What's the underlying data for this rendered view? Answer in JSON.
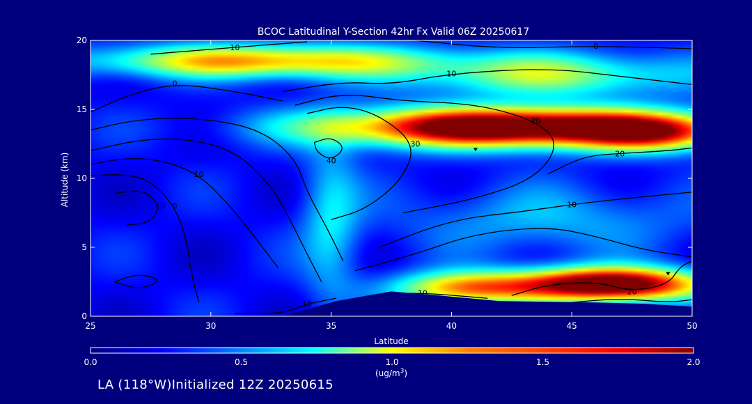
{
  "footer": {
    "text": "LA (118°W)Initialized 12Z 20250615"
  },
  "colors": {
    "background": "#00007f",
    "field_low": "#0033dd",
    "field_mid": "#22ccff",
    "field_high": "#8b0000",
    "terrain": "#00007f",
    "contour": "#000000"
  },
  "chart_data": {
    "type": "heatmap",
    "title": "BCOC Latitudinal Y-Section 42hr  Fx Valid 06Z 20250617",
    "xlabel": "Latitude",
    "ylabel": "Altitude (km)",
    "xlim": [
      25,
      50
    ],
    "ylim": [
      0,
      20
    ],
    "xticks": [
      25,
      30,
      35,
      40,
      45,
      50
    ],
    "yticks": [
      0,
      5,
      10,
      15,
      20
    ],
    "colorbar": {
      "label": "(ug/m",
      "label_sup": "3",
      "label_end": ")",
      "range": [
        0.0,
        2.0
      ],
      "ticks": [
        "0.0",
        "0.5",
        "1.0",
        "1.5",
        "2.0"
      ],
      "colormap": "jet"
    },
    "features": [
      {
        "name": "upper high band",
        "lat": 42.5,
        "alt": 13.7,
        "lat_halfwidth": 7.5,
        "alt_halfwidth": 1.4,
        "value": 2.2
      },
      {
        "name": "upper band east tail",
        "lat": 48.5,
        "alt": 13.2,
        "lat_halfwidth": 3.0,
        "alt_halfwidth": 1.3,
        "value": 0.9
      },
      {
        "name": "lower high band",
        "lat": 46.5,
        "alt": 2.3,
        "lat_halfwidth": 4.0,
        "alt_halfwidth": 1.2,
        "value": 2.1
      },
      {
        "name": "lower band west tail",
        "lat": 40.5,
        "alt": 2.0,
        "lat_halfwidth": 3.0,
        "alt_halfwidth": 1.2,
        "value": 1.1
      },
      {
        "name": "stratospheric layer",
        "lat": 32.0,
        "alt": 18.5,
        "lat_halfwidth": 7.0,
        "alt_halfwidth": 1.2,
        "value": 1.2
      },
      {
        "name": "stratospheric east",
        "lat": 44.0,
        "alt": 17.5,
        "lat_halfwidth": 6.0,
        "alt_halfwidth": 1.6,
        "value": 0.8
      },
      {
        "name": "mid-level east",
        "lat": 44.0,
        "alt": 7.0,
        "lat_halfwidth": 6.0,
        "alt_halfwidth": 2.5,
        "value": 0.35
      },
      {
        "name": "plume column",
        "lat": 35.0,
        "alt": 7.0,
        "lat_halfwidth": 1.2,
        "alt_halfwidth": 6.0,
        "value": 0.45
      }
    ],
    "terrain": [
      [
        25,
        0
      ],
      [
        33.0,
        0
      ],
      [
        35.2,
        1.1
      ],
      [
        37.5,
        1.8
      ],
      [
        39.5,
        1.5
      ],
      [
        42.0,
        1.1
      ],
      [
        46.0,
        1.0
      ],
      [
        48.0,
        0.9
      ],
      [
        50,
        0.7
      ]
    ],
    "contours": [
      {
        "label": "10",
        "points": [
          [
            27.5,
            19.0
          ],
          [
            31,
            19.5
          ],
          [
            34,
            19.9
          ]
        ]
      },
      {
        "label": "0",
        "points": [
          [
            38.5,
            20
          ],
          [
            42,
            19.4
          ],
          [
            46,
            19.6
          ],
          [
            50,
            19.4
          ]
        ]
      },
      {
        "label": "10",
        "points": [
          [
            33,
            16.3
          ],
          [
            35.5,
            17.0
          ],
          [
            37.5,
            16.8
          ],
          [
            40,
            17.6
          ],
          [
            44,
            18.0
          ],
          [
            47,
            17.4
          ],
          [
            50,
            16.8
          ]
        ]
      },
      {
        "label": "20",
        "points": [
          [
            33.5,
            15.3
          ],
          [
            35.5,
            16.2
          ],
          [
            38,
            15.6
          ],
          [
            41,
            15.4
          ],
          [
            43.5,
            14.2
          ],
          [
            44.5,
            12.5
          ],
          [
            43.5,
            10.0
          ],
          [
            41,
            8.5
          ],
          [
            38,
            7.5
          ]
        ]
      },
      {
        "label": "30",
        "points": [
          [
            34,
            14.7
          ],
          [
            35.5,
            15.3
          ],
          [
            37,
            14.6
          ],
          [
            38.5,
            12.5
          ],
          [
            38.0,
            10.0
          ],
          [
            36.5,
            7.8
          ],
          [
            35,
            7.0
          ]
        ]
      },
      {
        "label": "40",
        "points": [
          [
            34.3,
            12.6
          ],
          [
            35.0,
            13.0
          ],
          [
            35.6,
            12.2
          ],
          [
            35.0,
            11.3
          ],
          [
            34.4,
            11.9
          ],
          [
            34.3,
            12.6
          ]
        ]
      },
      {
        "label": "0",
        "points": [
          [
            25,
            14.8
          ],
          [
            26.5,
            16.0
          ],
          [
            28.5,
            16.9
          ],
          [
            31,
            16.3
          ],
          [
            33,
            15.6
          ]
        ]
      },
      {
        "label": "",
        "points": [
          [
            25,
            13.5
          ],
          [
            27,
            14.3
          ],
          [
            29.5,
            14.4
          ],
          [
            32,
            13.6
          ],
          [
            33.5,
            11.5
          ],
          [
            34,
            9.0
          ],
          [
            34.8,
            6.5
          ],
          [
            35.5,
            4.0
          ]
        ]
      },
      {
        "label": "",
        "points": [
          [
            25,
            12.0
          ],
          [
            27,
            12.8
          ],
          [
            29,
            12.9
          ],
          [
            31,
            12.0
          ],
          [
            32.5,
            9.5
          ],
          [
            33.3,
            7.0
          ],
          [
            34.0,
            4.5
          ],
          [
            34.6,
            2.5
          ]
        ]
      },
      {
        "label": "10",
        "points": [
          [
            25,
            11.0
          ],
          [
            26.5,
            11.5
          ],
          [
            28,
            11.3
          ],
          [
            29.5,
            10.3
          ],
          [
            30.8,
            8.0
          ],
          [
            31.8,
            5.8
          ],
          [
            32.8,
            3.5
          ]
        ]
      },
      {
        "label": "0",
        "points": [
          [
            25,
            10.2
          ],
          [
            26.5,
            10.3
          ],
          [
            27.5,
            9.8
          ],
          [
            28.5,
            8.0
          ],
          [
            29.0,
            5.5
          ],
          [
            29.2,
            3.0
          ],
          [
            29.5,
            1.0
          ]
        ]
      },
      {
        "label": "10",
        "points": [
          [
            26.0,
            8.9
          ],
          [
            27.2,
            9.2
          ],
          [
            27.9,
            8.0
          ],
          [
            27.5,
            6.8
          ],
          [
            26.5,
            6.6
          ]
        ]
      },
      {
        "label": "",
        "points": [
          [
            26.0,
            2.5
          ],
          [
            27.0,
            3.1
          ],
          [
            28.0,
            2.6
          ],
          [
            27.0,
            1.9
          ],
          [
            26.0,
            2.5
          ]
        ]
      },
      {
        "label": "",
        "points": [
          [
            36.0,
            3.3
          ],
          [
            38.5,
            4.5
          ],
          [
            41,
            6.0
          ],
          [
            44,
            6.5
          ],
          [
            46,
            5.8
          ],
          [
            48,
            4.8
          ],
          [
            50,
            4.3
          ]
        ]
      },
      {
        "label": "10",
        "points": [
          [
            37.0,
            5.0
          ],
          [
            40,
            7.0
          ],
          [
            43,
            7.6
          ],
          [
            45,
            8.1
          ],
          [
            47,
            8.5
          ],
          [
            50,
            9.0
          ]
        ]
      },
      {
        "label": "20",
        "points": [
          [
            44.0,
            10.3
          ],
          [
            45.5,
            11.6
          ],
          [
            47,
            11.8
          ],
          [
            49,
            12.0
          ],
          [
            50,
            12.2
          ]
        ]
      },
      {
        "label": "10",
        "points": [
          [
            31,
            0.2
          ],
          [
            33,
            0.2
          ],
          [
            34,
            0.9
          ],
          [
            35.2,
            1.3
          ]
        ]
      },
      {
        "label": "10",
        "points": [
          [
            37.2,
            1.6
          ],
          [
            38.8,
            1.7
          ],
          [
            41.5,
            1.3
          ]
        ]
      },
      {
        "label": "20",
        "points": [
          [
            42.5,
            1.5
          ],
          [
            44,
            2.3
          ],
          [
            46,
            2.5
          ],
          [
            47.5,
            1.8
          ],
          [
            49,
            2.3
          ],
          [
            49.5,
            3.6
          ],
          [
            50,
            4.0
          ]
        ]
      },
      {
        "label": "",
        "points": [
          [
            45,
            1.0
          ],
          [
            47,
            1.3
          ],
          [
            49,
            1.0
          ],
          [
            50,
            1.2
          ]
        ]
      }
    ],
    "markers": [
      [
        41.0,
        12.1
      ],
      [
        49.0,
        3.1
      ]
    ]
  }
}
